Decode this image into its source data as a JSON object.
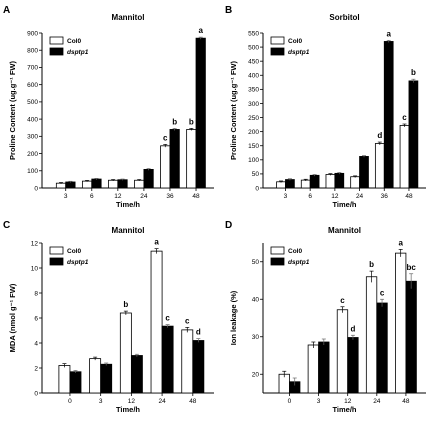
{
  "colors": {
    "series_open": "#ffffff",
    "series_filled": "#000000",
    "stroke": "#000000"
  },
  "chart_data": [
    {
      "panel": "A",
      "type": "bar",
      "title": "Mannitol",
      "xlabel": "Time/h",
      "ylabel": "Proline Content (ug.g⁻¹ FW)",
      "ylim": [
        0,
        900
      ],
      "yticks": [
        0,
        100,
        200,
        300,
        400,
        500,
        600,
        700,
        800,
        900
      ],
      "categories": [
        "3",
        "6",
        "12",
        "24",
        "36",
        "48"
      ],
      "legend": "top-left",
      "series": [
        {
          "name": "Col0",
          "values": [
            28,
            40,
            45,
            45,
            245,
            340
          ],
          "errors": [
            4,
            4,
            4,
            4,
            8,
            6
          ]
        },
        {
          "name": "dsptp1",
          "values": [
            35,
            52,
            48,
            108,
            340,
            870
          ],
          "errors": [
            4,
            4,
            4,
            5,
            6,
            6
          ]
        }
      ],
      "significance": [
        {
          "category": "36",
          "series": 0,
          "label": "c"
        },
        {
          "category": "36",
          "series": 1,
          "label": "b"
        },
        {
          "category": "48",
          "series": 0,
          "label": "b"
        },
        {
          "category": "48",
          "series": 1,
          "label": "a"
        }
      ]
    },
    {
      "panel": "B",
      "type": "bar",
      "title": "Sorbitol",
      "xlabel": "Time/h",
      "ylabel": "Proline Content (ug.g⁻¹ FW)",
      "ylim": [
        0,
        550
      ],
      "yticks": [
        0,
        50,
        100,
        150,
        200,
        250,
        300,
        350,
        400,
        450,
        500,
        550
      ],
      "categories": [
        "3",
        "6",
        "12",
        "24",
        "36",
        "48"
      ],
      "legend": "top-left",
      "series": [
        {
          "name": "Col0",
          "values": [
            22,
            28,
            48,
            40,
            158,
            222
          ],
          "errors": [
            3,
            3,
            3,
            3,
            5,
            5
          ]
        },
        {
          "name": "dsptp1",
          "values": [
            30,
            45,
            52,
            112,
            520,
            380
          ],
          "errors": [
            3,
            3,
            3,
            3,
            4,
            6
          ]
        }
      ],
      "significance": [
        {
          "category": "36",
          "series": 0,
          "label": "d"
        },
        {
          "category": "36",
          "series": 1,
          "label": "a"
        },
        {
          "category": "48",
          "series": 0,
          "label": "c"
        },
        {
          "category": "48",
          "series": 1,
          "label": "b"
        }
      ]
    },
    {
      "panel": "C",
      "type": "bar",
      "title": "Mannitol",
      "xlabel": "Time/h",
      "ylabel": "MDA (nmol g⁻¹ FW)",
      "ylim": [
        0,
        12
      ],
      "yticks": [
        0,
        2,
        4,
        6,
        8,
        10,
        12
      ],
      "categories": [
        "0",
        "3",
        "12",
        "24",
        "48"
      ],
      "legend": "top-left",
      "series": [
        {
          "name": "Col0",
          "values": [
            2.2,
            2.75,
            6.4,
            11.35,
            5.05
          ],
          "errors": [
            0.15,
            0.12,
            0.15,
            0.2,
            0.2
          ]
        },
        {
          "name": "dsptp1",
          "values": [
            1.7,
            2.3,
            3.0,
            5.35,
            4.2
          ],
          "errors": [
            0.1,
            0.1,
            0.1,
            0.12,
            0.15
          ]
        }
      ],
      "significance": [
        {
          "category": "12",
          "series": 0,
          "label": "b"
        },
        {
          "category": "24",
          "series": 0,
          "label": "a"
        },
        {
          "category": "24",
          "series": 1,
          "label": "c"
        },
        {
          "category": "48",
          "series": 0,
          "label": "c"
        },
        {
          "category": "48",
          "series": 1,
          "label": "d"
        }
      ]
    },
    {
      "panel": "D",
      "type": "bar",
      "title": "Mannitol",
      "xlabel": "Time/h",
      "ylabel": "Ion leakage (%)",
      "ylim": [
        15,
        55
      ],
      "yticks": [
        20,
        30,
        40,
        50
      ],
      "categories": [
        "0",
        "3",
        "12",
        "24",
        "48"
      ],
      "legend": "top-left",
      "series": [
        {
          "name": "Col0",
          "values": [
            20,
            27.8,
            37.2,
            46,
            52.3
          ],
          "errors": [
            0.8,
            0.8,
            0.8,
            1.5,
            1.0
          ]
        },
        {
          "name": "dsptp1",
          "values": [
            18,
            28.6,
            29.8,
            39,
            44.8
          ],
          "errors": [
            1.0,
            0.8,
            0.6,
            1.0,
            2.0
          ]
        }
      ],
      "significance": [
        {
          "category": "12",
          "series": 0,
          "label": "c"
        },
        {
          "category": "12",
          "series": 1,
          "label": "d"
        },
        {
          "category": "24",
          "series": 0,
          "label": "b"
        },
        {
          "category": "24",
          "series": 1,
          "label": "c"
        },
        {
          "category": "48",
          "series": 0,
          "label": "a"
        },
        {
          "category": "48",
          "series": 1,
          "label": "bc"
        }
      ]
    }
  ]
}
